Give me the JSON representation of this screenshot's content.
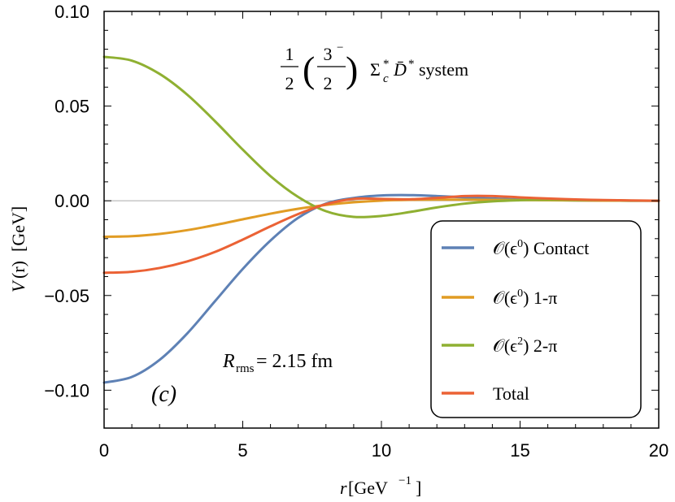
{
  "chart_data": {
    "type": "line",
    "title": {
      "frac1_num": "1",
      "frac1_den": "2",
      "lparen": "(",
      "frac2_num": "3",
      "frac2_sup": "−",
      "frac2_den": "2",
      "rparen": ")",
      "system": "Σ",
      "system_sub": "c",
      "system_sup": "*",
      "partner": "D̄",
      "partner_sup": "*",
      "suffix": "system"
    },
    "xlabel": {
      "var": "r",
      "unit": "[GeV",
      "exp": "−1",
      "close": "]"
    },
    "ylabel": {
      "var": "V",
      "arg": "(r)",
      "unit": "[GeV]"
    },
    "xlim": [
      0,
      20
    ],
    "ylim": [
      -0.12,
      0.1
    ],
    "xticks": [
      0,
      5,
      10,
      15,
      20
    ],
    "xtick_labels": [
      "0",
      "5",
      "10",
      "15",
      "20"
    ],
    "yticks": [
      0.1,
      0.05,
      0.0,
      -0.05,
      -0.1
    ],
    "ytick_labels": [
      "0.10",
      "0.05",
      "0.00",
      "−0.05",
      "−0.10"
    ],
    "zero_line": true,
    "grid": false,
    "legend_position": "bottom-right",
    "annotations": {
      "rms_var": "R",
      "rms_sub": "rms",
      "rms_value": " = 2.15 fm",
      "panel": "(c)"
    },
    "x": [
      0,
      1,
      2,
      3,
      4,
      5,
      6,
      7,
      8,
      9,
      10,
      11,
      12,
      13,
      14,
      15,
      16,
      17,
      18,
      19,
      20
    ],
    "series": [
      {
        "name": "𝒪(ϵ⁰) Contact",
        "legend_prefix": "𝒪(ϵ",
        "legend_exp": "0",
        "legend_suffix": ") Contact",
        "color": "#5e81b5",
        "values": [
          -0.096,
          -0.093,
          -0.084,
          -0.07,
          -0.053,
          -0.036,
          -0.021,
          -0.009,
          -0.0015,
          0.0015,
          0.0028,
          0.003,
          0.0025,
          0.0018,
          0.0012,
          0.0007,
          0.0004,
          0.0002,
          0.0001,
          5e-05,
          0.0
        ]
      },
      {
        "name": "𝒪(ϵ⁰) 1-π",
        "legend_prefix": "𝒪(ϵ",
        "legend_exp": "0",
        "legend_suffix": ") 1-π",
        "color": "#e19c24",
        "values": [
          -0.019,
          -0.0187,
          -0.0175,
          -0.0155,
          -0.0128,
          -0.0098,
          -0.0068,
          -0.0042,
          -0.0022,
          -0.0008,
          0.0001,
          0.0005,
          0.0006,
          0.0006,
          0.0005,
          0.0004,
          0.0003,
          0.0002,
          0.0001,
          5e-05,
          0.0
        ]
      },
      {
        "name": "𝒪(ϵ²) 2-π",
        "legend_prefix": "𝒪(ϵ",
        "legend_exp": "2",
        "legend_suffix": ") 2-π",
        "color": "#8fb032",
        "values": [
          0.076,
          0.074,
          0.067,
          0.056,
          0.042,
          0.027,
          0.013,
          0.002,
          -0.0055,
          -0.0085,
          -0.008,
          -0.006,
          -0.0035,
          -0.0015,
          -0.0003,
          0.0003,
          0.0005,
          0.0004,
          0.0003,
          0.0001,
          0.0
        ]
      },
      {
        "name": "Total",
        "legend_prefix": "",
        "legend_exp": "",
        "legend_suffix": "Total",
        "color": "#eb6235",
        "values": [
          -0.038,
          -0.0375,
          -0.0355,
          -0.032,
          -0.027,
          -0.0205,
          -0.0135,
          -0.007,
          -0.0018,
          0.001,
          0.001,
          0.0008,
          0.0015,
          0.0025,
          0.0025,
          0.0018,
          0.0012,
          0.0007,
          0.0004,
          0.0002,
          0.0
        ]
      }
    ]
  }
}
